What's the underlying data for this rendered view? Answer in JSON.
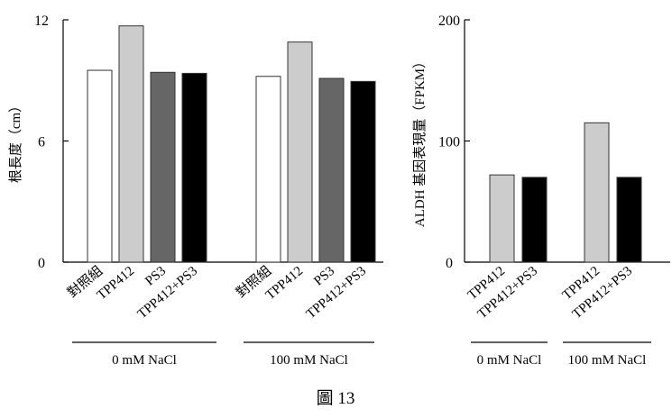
{
  "figure_caption": "圖 13",
  "chart_data": [
    {
      "type": "bar",
      "ylabel": "根長度（cm）",
      "ylim": [
        0,
        12
      ],
      "yticks": [
        0,
        6,
        12
      ],
      "categories": [
        "對照組",
        "TPP412",
        "PS3",
        "TPP412+PS3"
      ],
      "groups": [
        {
          "label": "0 mM NaCl",
          "values": [
            9.5,
            11.7,
            9.4,
            9.35
          ]
        },
        {
          "label": "100 mM NaCl",
          "values": [
            9.2,
            10.9,
            9.1,
            8.95
          ]
        }
      ],
      "colors": [
        "#ffffff",
        "#cccccc",
        "#666666",
        "#000000"
      ]
    },
    {
      "type": "bar",
      "ylabel": "ALDH 基因表現量（FPKM）",
      "ylim": [
        0,
        200
      ],
      "yticks": [
        0,
        100,
        200
      ],
      "categories": [
        "TPP412",
        "TPP412+PS3"
      ],
      "groups": [
        {
          "label": "0 mM NaCl",
          "values": [
            72,
            70
          ]
        },
        {
          "label": "100 mM NaCl",
          "values": [
            115,
            70
          ]
        }
      ],
      "colors": [
        "#cccccc",
        "#000000"
      ]
    }
  ]
}
